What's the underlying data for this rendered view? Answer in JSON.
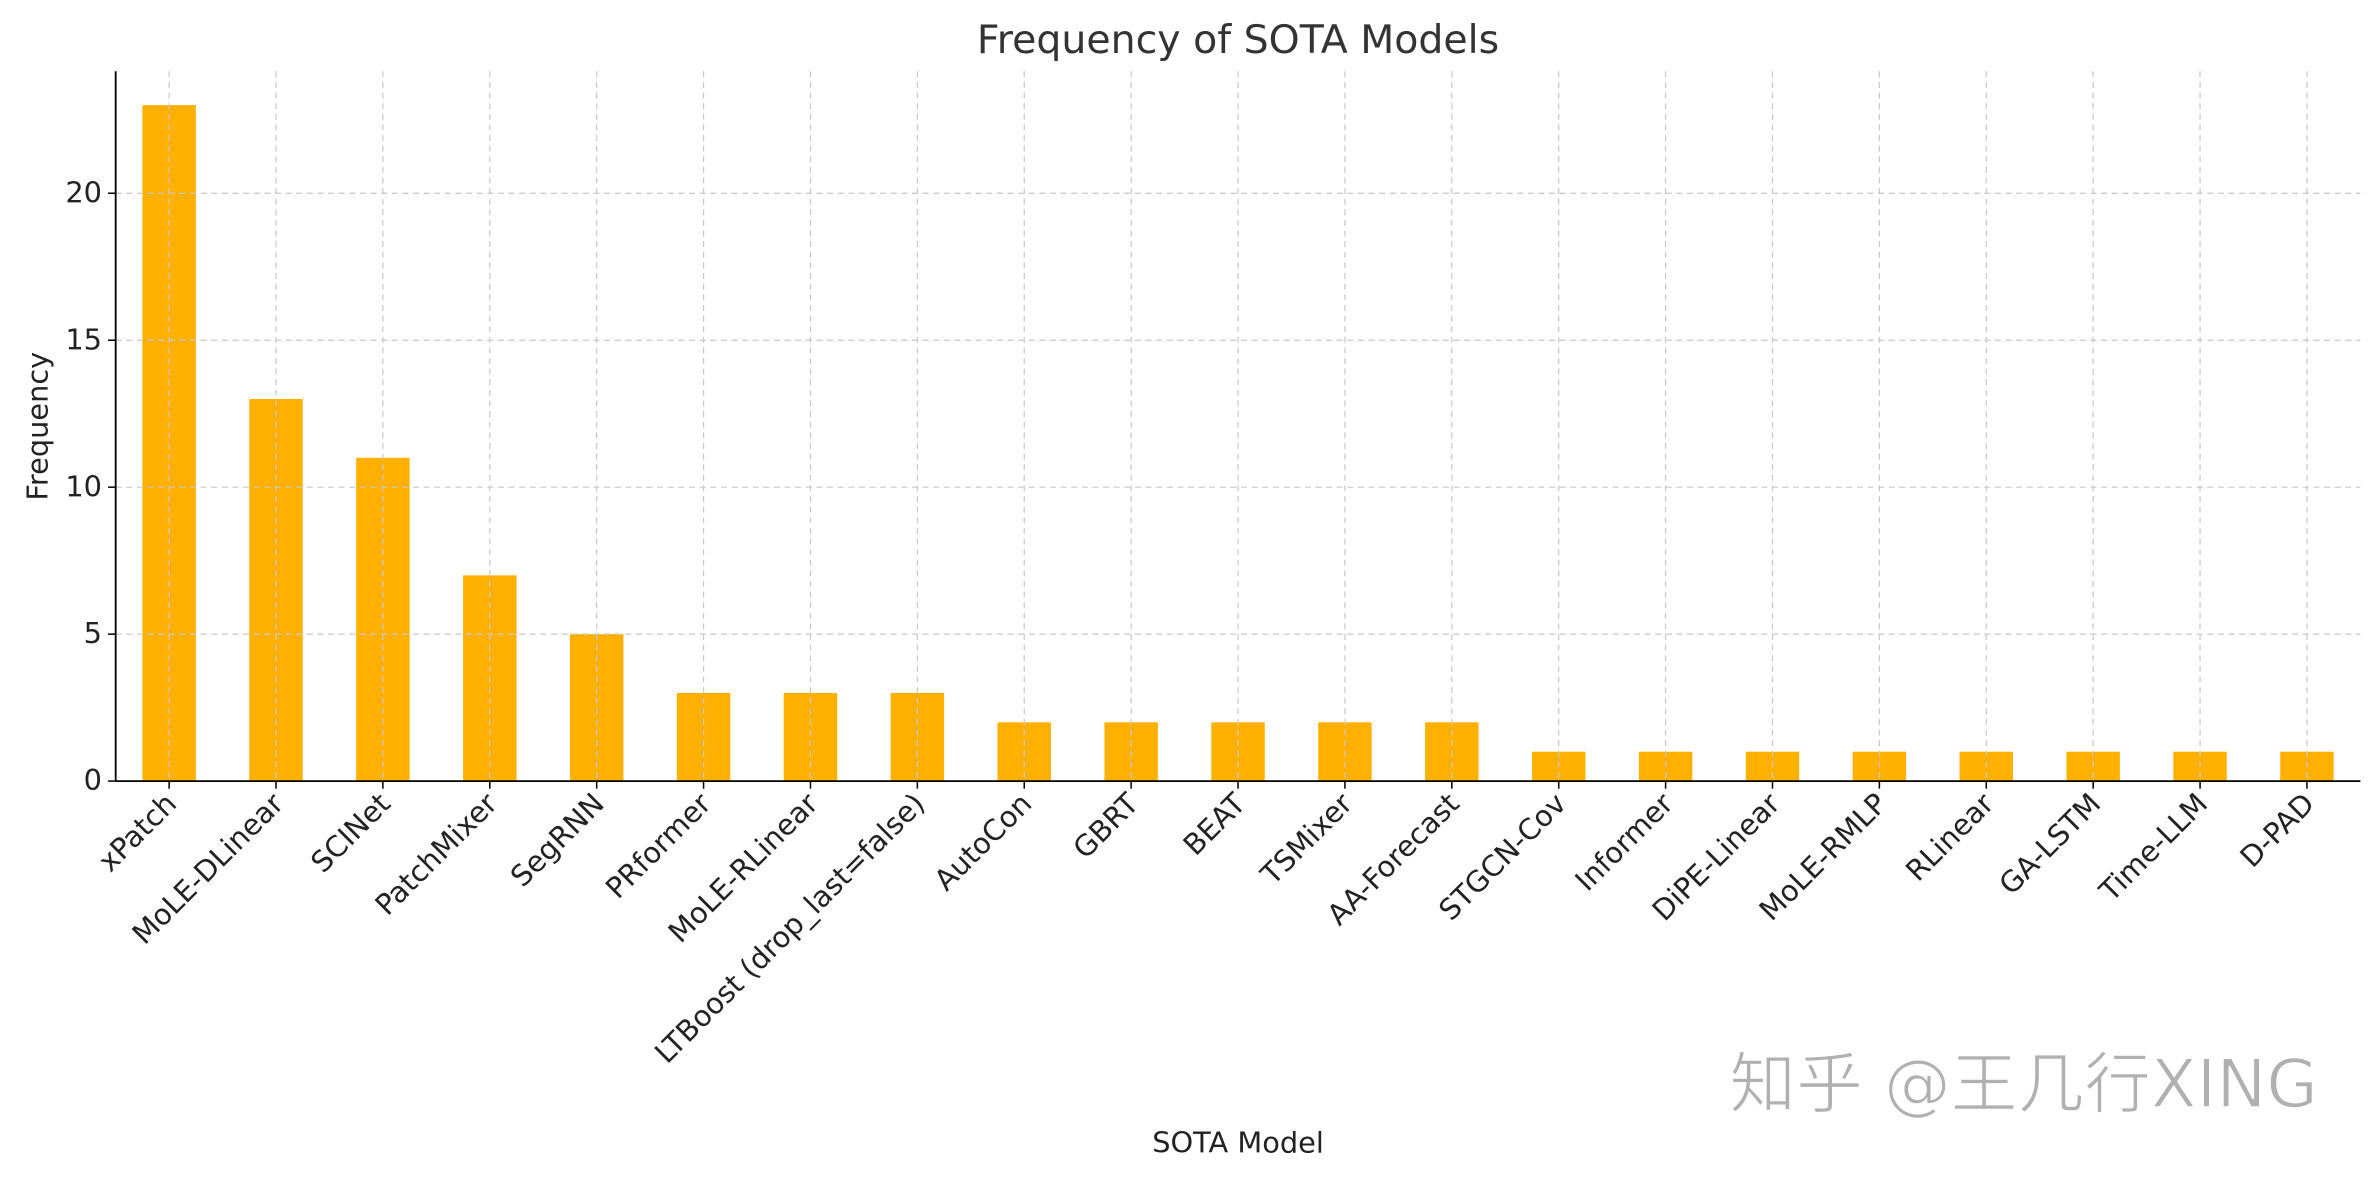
{
  "chart_data": {
    "type": "bar",
    "title": "Frequency of SOTA Models",
    "xlabel": "SOTA Model",
    "ylabel": "Frequency",
    "categories": [
      "xPatch",
      "MoLE-DLinear",
      "SCINet",
      "PatchMixer",
      "SegRNN",
      "PRformer",
      "MoLE-RLinear",
      "LTBoost (drop_last=false)",
      "AutoCon",
      "GBRT",
      "BEAT",
      "TSMixer",
      "AA-Forecast",
      "STGCN-Cov",
      "Informer",
      "DiPE-Linear",
      "MoLE-RMLP",
      "RLinear",
      "GA-LSTM",
      "Time-LLM",
      "D-PAD"
    ],
    "values": [
      23,
      13,
      11,
      7,
      5,
      3,
      3,
      3,
      2,
      2,
      2,
      2,
      2,
      1,
      1,
      1,
      1,
      1,
      1,
      1,
      1
    ],
    "yticks": [
      0,
      5,
      10,
      15,
      20
    ],
    "ylim": [
      0,
      24.15
    ],
    "grid": true,
    "bar_color": "#FFB000",
    "legend": "none"
  },
  "watermark": "知乎 @王几行XING"
}
